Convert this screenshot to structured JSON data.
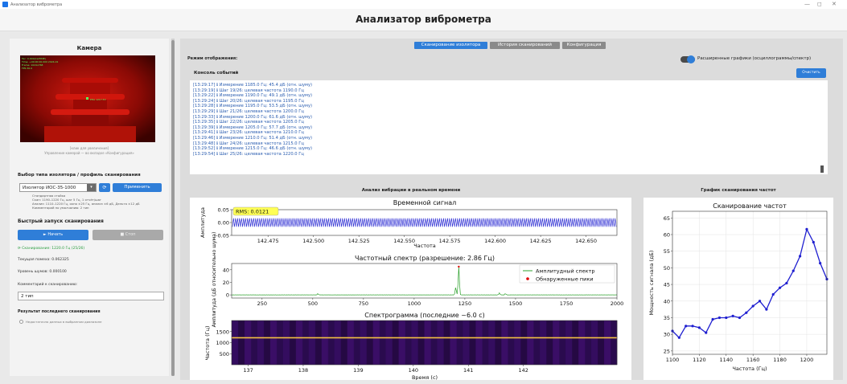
{
  "window": {
    "title": "Анализатор виброметра",
    "min": "—",
    "max": "◻",
    "close": "✕"
  },
  "header": {
    "title": "Анализатор виброметра"
  },
  "left": {
    "camera_title": "Камера",
    "cam_overlay": [
      "Fac: 0.000(CalTIME)",
      "Time: +00:00:00.000 2024-01",
      "Frame: 1024x768",
      "FPS:30.0"
    ],
    "cam_caption1": "[клик для увеличения]",
    "cam_caption2": "Управление камерой — во вкладке «Конфигурация»",
    "profile_title": "Выбор типа изолятора / профиль сканирования",
    "profile_value": "Изолятор ИОС-35-1000",
    "refresh_label": "⟳",
    "apply_label": "Применить",
    "profile_desc": [
      "Стандартная стойка",
      "Скан: 1190–1220 Гц, шаг 5 Гц, 1 отчёт/шаг",
      "Анализ: 1110–1220 Гц, окно ±25 Гц, анализ ±6 дБ, Дельта ±12 дБ",
      "Комментарий по умолчанию: 2 тип"
    ],
    "quick_title": "Быстрый запуск сканирования",
    "start_label": "► Начать",
    "stop_label": "■ Стоп",
    "scan_status": "⟳ Сканирование: 1220.0 Гц (25/26)",
    "current_freq": "Текущая помеха: 0.062325",
    "noise_level": "Уровень шумов: 0.000100",
    "comment_label": "Комментарий к сканированию:",
    "comment_value": "2 тип",
    "last_result_title": "Результат последнего сканирования",
    "last_result_text": "Недостаточно данных в выбранном диапазоне"
  },
  "tabs": [
    {
      "label": "Сканирование изолятора",
      "active": true
    },
    {
      "label": "История сканирований",
      "active": false
    },
    {
      "label": "Конфигурация",
      "active": false
    }
  ],
  "display_mode": "Режим отображения:",
  "toggle_label": "Расширенные графики (осциллограммы/спектр)",
  "console_title": "Консоль событий",
  "clear_label": "Очистить",
  "log_lines": [
    "[13:29:17] ℹ Измерение 1185.0 Гц: 45.4 дБ (отн. шуму)",
    "[13:29:19] ℹ Шаг 19/26: целевая частота 1190.0 Гц",
    "[13:29:22] ℹ Измерение 1190.0 Гц: 49.1 дБ (отн. шуму)",
    "[13:29:24] ℹ Шаг 20/26: целевая частота 1195.0 Гц",
    "[13:29:28] ℹ Измерение 1195.0 Гц: 53.5 дБ (отн. шуму)",
    "[13:29:29] ℹ Шаг 21/26: целевая частота 1200.0 Гц",
    "[13:29:33] ℹ Измерение 1200.0 Гц: 61.6 дБ (отн. шуму)",
    "[13:29:35] ℹ Шаг 22/26: целевая частота 1205.0 Гц",
    "[13:29:39] ℹ Измерение 1205.0 Гц: 57.7 дБ (отн. шуму)",
    "[13:29:41] ℹ Шаг 23/26: целевая частота 1210.0 Гц",
    "[13:29:46] ℹ Измерение 1210.0 Гц: 51.4 дБ (отн. шуму)",
    "[13:29:48] ℹ Шаг 24/26: целевая частота 1215.0 Гц",
    "[13:29:52] ℹ Измерение 1215.0 Гц: 46.6 дБ (отн. шуму)",
    "[13:29:54] ℹ Шаг 25/26: целевая частота 1220.0 Гц"
  ],
  "vibration_title": "Анализ вибрации в реальном времени",
  "scan_chart_title": "График сканирования частот",
  "colors": {
    "accent": "#2f7ed8",
    "plot_blue": "#1f1fd0",
    "spectrum": "#2ca02c",
    "peak": "#e00000"
  },
  "chart_data": [
    {
      "type": "line",
      "title": "Временной сигнал",
      "ylabel": "Амплитуда",
      "xlabel": "",
      "annotation": "RMS: 0.0121",
      "xlim": [
        142.455,
        142.667
      ],
      "ylim": [
        -0.05,
        0.05
      ],
      "x_ticks": [
        "142.475",
        "142.500",
        "142.525",
        "142.550",
        "142.575",
        "142.600",
        "142.625",
        "142.650"
      ],
      "y_ticks": [
        "0.05",
        "0.00",
        "-0.05"
      ],
      "signal_frequency_hz": 1220,
      "amplitude": 0.017
    },
    {
      "type": "line",
      "title": "Частотный спектр (разрешение: 2.86 Гц)",
      "xlabel": "Частота",
      "ylabel": "Амплитуда (дБ относительно шума)",
      "xlim": [
        100,
        2000
      ],
      "ylim": [
        -5,
        50
      ],
      "x_ticks": [
        "250",
        "500",
        "750",
        "1000",
        "1250",
        "1500",
        "1750",
        "2000"
      ],
      "y_ticks": [
        "40",
        "20",
        "0"
      ],
      "legend": [
        "Амплитудный спектр",
        "Обнаруженные пики"
      ],
      "peaks": [
        {
          "x": 1220,
          "y": 45
        }
      ],
      "secondary_peaks": [
        {
          "x": 1205,
          "y": 12
        },
        {
          "x": 525,
          "y": 2
        },
        {
          "x": 1420,
          "y": 3
        },
        {
          "x": 1450,
          "y": 2
        }
      ]
    },
    {
      "type": "heatmap",
      "title": "Спектрограмма (последние ~6.0 с)",
      "xlabel": "Время (с)",
      "ylabel": "Частота (Гц)",
      "xlim": [
        136.7,
        143.7
      ],
      "ylim": [
        0,
        2000
      ],
      "x_ticks": [
        "137",
        "138",
        "139",
        "140",
        "141",
        "142"
      ],
      "y_ticks": [
        "1500",
        "1000",
        "500"
      ],
      "band_hz": 1220
    },
    {
      "type": "line",
      "title": "Сканирование частот",
      "xlabel": "Частота (Гц)",
      "ylabel": "Мощность сигнала (дБ)",
      "xlim": [
        1100,
        1215
      ],
      "ylim": [
        24,
        67
      ],
      "x_ticks": [
        "1100",
        "1120",
        "1140",
        "1160",
        "1180",
        "1200"
      ],
      "y_ticks": [
        "25",
        "30",
        "35",
        "40",
        "45",
        "50",
        "55",
        "60",
        "65"
      ],
      "x": [
        1100,
        1105,
        1110,
        1115,
        1120,
        1125,
        1130,
        1135,
        1140,
        1145,
        1150,
        1155,
        1160,
        1165,
        1170,
        1175,
        1180,
        1185,
        1190,
        1195,
        1200,
        1205,
        1210,
        1215
      ],
      "y": [
        31.0,
        29.0,
        32.5,
        32.5,
        32.0,
        30.5,
        34.5,
        35.0,
        35.0,
        35.5,
        35.0,
        36.5,
        38.5,
        40.0,
        37.5,
        42.0,
        44.0,
        45.4,
        49.1,
        53.5,
        61.6,
        57.7,
        51.4,
        46.6
      ]
    }
  ]
}
